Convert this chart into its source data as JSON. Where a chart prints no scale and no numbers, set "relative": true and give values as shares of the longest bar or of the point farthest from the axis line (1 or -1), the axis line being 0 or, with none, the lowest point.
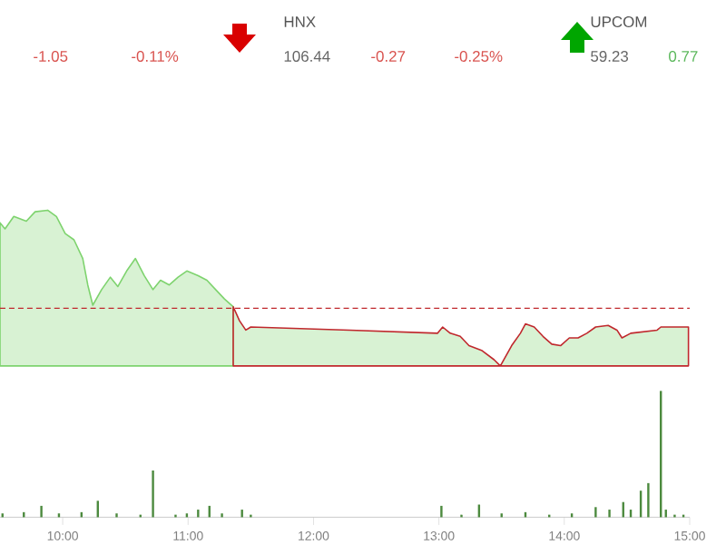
{
  "chart_data": [
    {
      "type": "other",
      "annotations": [
        "-1.05",
        "-0.11%",
        "HNX",
        "106.44",
        "-0.27",
        "-0.25%",
        "UPCOM",
        "59.23",
        "0.77"
      ],
      "colors": [
        "#d9534f",
        "#d9534f",
        "#555555",
        "#666666",
        "#d9534f",
        "#d9534f",
        "#555555",
        "#666666",
        "#5cb85c"
      ]
    },
    {
      "type": "area",
      "relative": true,
      "xlim": [
        9.5,
        15.0
      ],
      "tick_labels": false,
      "ref_lines": [
        {
          "axis": "y",
          "value": 0.37,
          "color": "#c0282d",
          "line_style": "dashed"
        }
      ],
      "series": [
        {
          "color": "#7ed36e",
          "x": [
            9.5,
            9.54,
            9.61,
            9.71,
            9.78,
            9.88,
            9.95,
            10.02,
            10.09,
            10.16,
            10.2,
            10.24,
            10.31,
            10.38,
            10.44,
            10.51,
            10.58,
            10.65,
            10.72,
            10.78,
            10.85,
            10.92,
            10.99,
            11.08,
            11.15,
            11.22,
            11.29,
            11.36
          ],
          "values": [
            0.92,
            0.88,
            0.96,
            0.93,
            0.99,
            1.0,
            0.96,
            0.85,
            0.81,
            0.69,
            0.52,
            0.39,
            0.49,
            0.57,
            0.51,
            0.61,
            0.69,
            0.58,
            0.49,
            0.55,
            0.52,
            0.57,
            0.61,
            0.58,
            0.55,
            0.49,
            0.43,
            0.38
          ]
        },
        {
          "color": "#c0282d",
          "x": [
            11.36,
            11.41,
            11.46,
            11.5,
            12.29,
            12.99,
            13.03,
            13.09,
            13.17,
            13.24,
            13.34,
            13.44,
            13.49,
            13.58,
            13.65,
            13.69,
            13.76,
            13.83,
            13.9,
            13.97,
            14.04,
            14.11,
            14.18,
            14.25,
            14.35,
            14.42,
            14.46,
            14.53,
            14.74,
            14.77,
            14.99
          ],
          "values": [
            0.38,
            0.29,
            0.23,
            0.25,
            0.23,
            0.21,
            0.25,
            0.21,
            0.19,
            0.13,
            0.1,
            0.04,
            0.0,
            0.13,
            0.21,
            0.27,
            0.25,
            0.19,
            0.14,
            0.13,
            0.18,
            0.18,
            0.21,
            0.25,
            0.26,
            0.23,
            0.18,
            0.21,
            0.23,
            0.25,
            0.25
          ]
        }
      ]
    },
    {
      "type": "bar",
      "relative": true,
      "xlim": [
        9.5,
        15.0
      ],
      "tick_labels": "x",
      "xticks": [
        {
          "value": 10,
          "label": "10:00"
        },
        {
          "value": 11,
          "label": "11:00"
        },
        {
          "value": 12,
          "label": "12:00"
        },
        {
          "value": 13,
          "label": "13:00"
        },
        {
          "value": 14,
          "label": "14:00"
        },
        {
          "value": 15,
          "label": "15:00"
        }
      ],
      "series": [
        {
          "color": "#4c8a3e",
          "x": [
            9.52,
            9.69,
            9.83,
            9.97,
            10.15,
            10.28,
            10.43,
            10.62,
            10.72,
            10.9,
            10.99,
            11.08,
            11.17,
            11.27,
            11.43,
            11.5,
            13.02,
            13.18,
            13.32,
            13.5,
            13.69,
            13.88,
            14.06,
            14.25,
            14.36,
            14.47,
            14.53,
            14.61,
            14.67,
            14.77,
            14.81,
            14.88,
            14.95
          ],
          "values": [
            0.03,
            0.04,
            0.09,
            0.03,
            0.04,
            0.13,
            0.03,
            0.02,
            0.37,
            0.02,
            0.03,
            0.06,
            0.09,
            0.03,
            0.06,
            0.02,
            0.09,
            0.02,
            0.1,
            0.03,
            0.04,
            0.02,
            0.03,
            0.08,
            0.06,
            0.12,
            0.06,
            0.21,
            0.27,
            1.0,
            0.06,
            0.02,
            0.02
          ]
        }
      ]
    }
  ]
}
